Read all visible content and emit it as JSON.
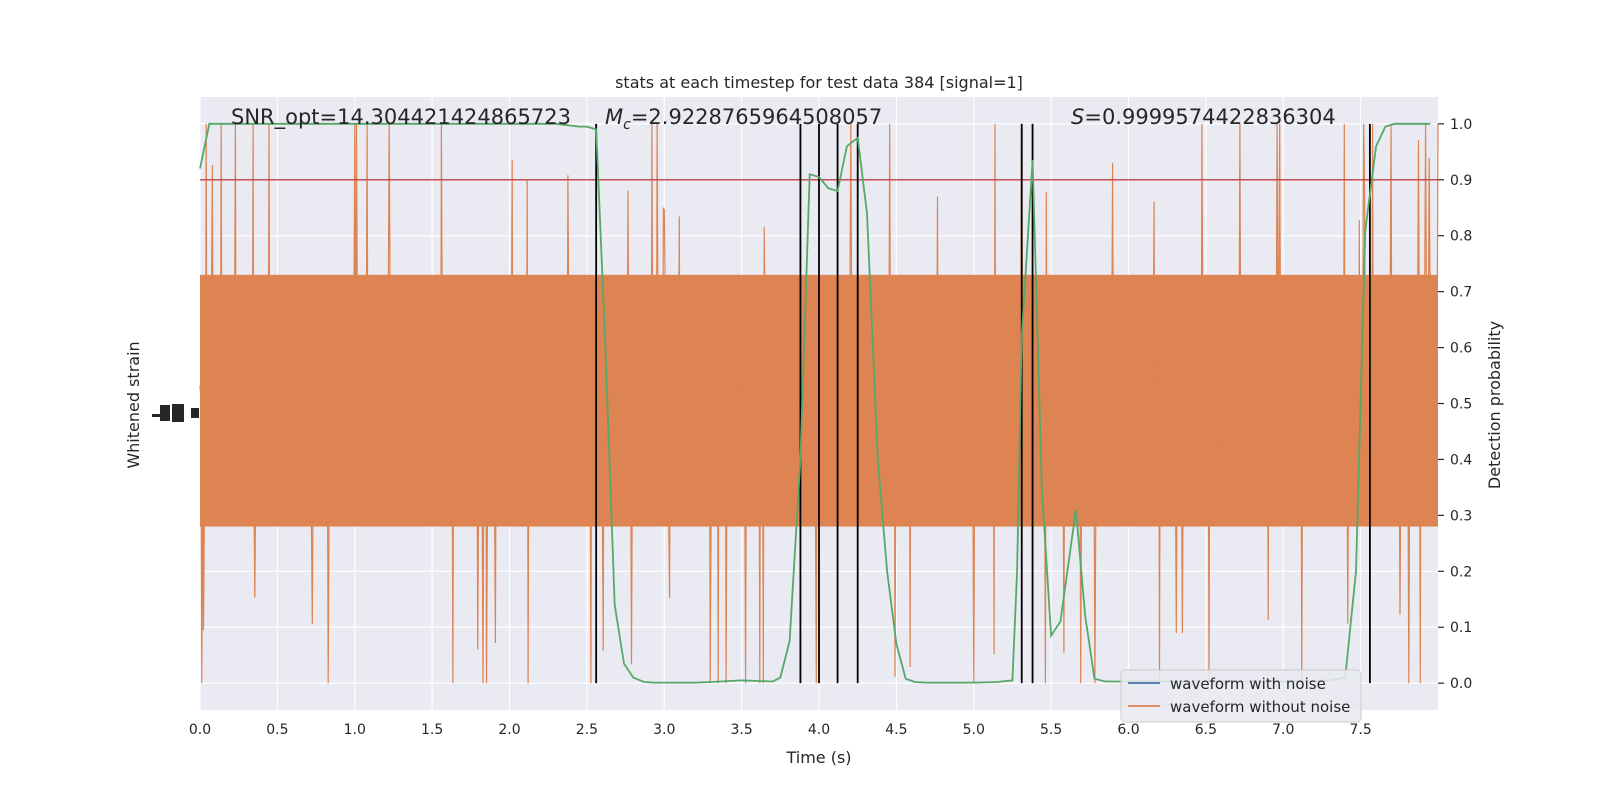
{
  "chart_data": {
    "type": "line",
    "title": "stats at each timestep for test data 384 [signal=1]",
    "xlabel": "Time (s)",
    "ylabel_left": "Whitened strain",
    "ylabel_right": "Detection probability",
    "annotations": {
      "snr": "SNR_opt=14.304421424865723",
      "mc_symbol": "M",
      "mc_sub": "c",
      "mc_value": "=2.9228765964508057",
      "s_symbol": "S",
      "s_value": "=0.9999574422836304"
    },
    "xlim": [
      0,
      8
    ],
    "xticks": [
      0.0,
      0.5,
      1.0,
      1.5,
      2.0,
      2.5,
      3.0,
      3.5,
      4.0,
      4.5,
      5.0,
      5.5,
      6.0,
      6.5,
      7.0,
      7.5
    ],
    "xtick_labels": [
      "0.0",
      "0.5",
      "1.0",
      "1.5",
      "2.0",
      "2.5",
      "3.0",
      "3.5",
      "4.0",
      "4.5",
      "5.0",
      "5.5",
      "6.0",
      "6.5",
      "7.0",
      "7.5"
    ],
    "y_right_lim": [
      -0.048,
      1.048
    ],
    "y_right_ticks": [
      0.0,
      0.1,
      0.2,
      0.3,
      0.4,
      0.5,
      0.6,
      0.7,
      0.8,
      0.9,
      1.0
    ],
    "y_right_tick_labels": [
      "0.0",
      "0.1",
      "0.2",
      "0.3",
      "0.4",
      "0.5",
      "0.6",
      "0.7",
      "0.8",
      "0.9",
      "1.0"
    ],
    "threshold": 0.9,
    "detection_boundaries": [
      2.56,
      3.88,
      4.0,
      4.12,
      4.25,
      5.31,
      5.38,
      7.56
    ],
    "series": [
      {
        "name": "waveform with noise",
        "color": "#4c72b0"
      },
      {
        "name": "waveform without noise",
        "color": "#dd8452"
      }
    ],
    "detection_probability": {
      "color": "#55a868",
      "x": [
        0.0,
        0.06,
        0.12,
        0.5,
        1.0,
        1.5,
        2.0,
        2.3,
        2.45,
        2.5,
        2.56,
        2.62,
        2.68,
        2.74,
        2.8,
        2.87,
        2.94,
        3.0,
        3.06,
        3.13,
        3.2,
        3.3,
        3.5,
        3.7,
        3.75,
        3.81,
        3.88,
        3.94,
        4.0,
        4.06,
        4.12,
        4.18,
        4.25,
        4.31,
        4.38,
        4.44,
        4.5,
        4.56,
        4.62,
        4.7,
        4.8,
        5.0,
        5.15,
        5.25,
        5.28,
        5.31,
        5.38,
        5.44,
        5.5,
        5.56,
        5.6,
        5.66,
        5.72,
        5.78,
        5.85,
        5.92,
        6.0,
        6.5,
        7.0,
        7.3,
        7.4,
        7.47,
        7.53,
        7.6,
        7.66,
        7.72,
        7.8,
        7.95
      ],
      "y": [
        0.92,
        1.0,
        1.0,
        1.0,
        1.0,
        1.0,
        1.0,
        1.0,
        0.995,
        0.995,
        0.99,
        0.6,
        0.14,
        0.035,
        0.01,
        0.002,
        0.001,
        0.001,
        0.001,
        0.001,
        0.001,
        0.002,
        0.005,
        0.003,
        0.01,
        0.075,
        0.4,
        0.91,
        0.905,
        0.885,
        0.88,
        0.96,
        0.975,
        0.84,
        0.4,
        0.2,
        0.07,
        0.008,
        0.002,
        0.001,
        0.001,
        0.001,
        0.002,
        0.005,
        0.2,
        0.62,
        0.935,
        0.35,
        0.085,
        0.11,
        0.19,
        0.31,
        0.12,
        0.008,
        0.003,
        0.003,
        0.003,
        0.003,
        0.003,
        0.005,
        0.01,
        0.2,
        0.81,
        0.96,
        0.995,
        1.0,
        1.0,
        1.0
      ]
    },
    "waveform_without_noise_envelope": {
      "description_free": "",
      "max_dense": 0.73,
      "min_dense": 0.28,
      "peak_high": 1.0,
      "peak_low": 0.0
    },
    "grid": true,
    "legend_placement": "lower right"
  }
}
